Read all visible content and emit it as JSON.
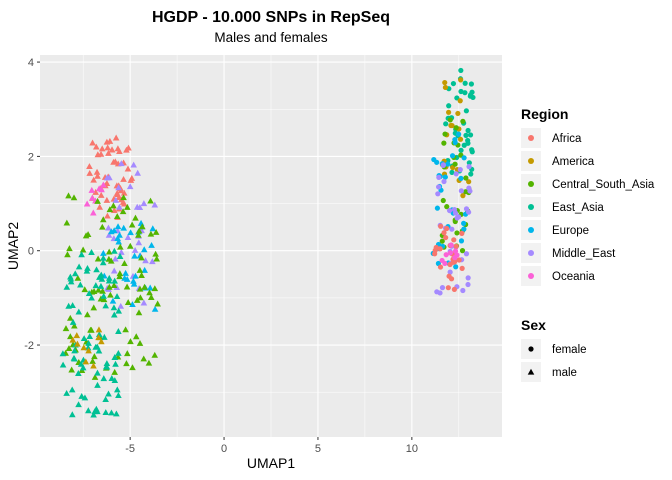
{
  "chart_data": {
    "type": "scatter",
    "title": "HGDP - 10.000 SNPs in RepSeq",
    "subtitle": "Males and females",
    "xlabel": "UMAP1",
    "ylabel": "UMAP2",
    "xlim": [
      -9.8,
      14.8
    ],
    "ylim": [
      -3.95,
      4.15
    ],
    "x_ticks": [
      -5,
      0,
      5,
      10
    ],
    "x_tick_labels": [
      "-5",
      "0",
      "5",
      "10"
    ],
    "y_ticks": [
      -2,
      0,
      2,
      4
    ],
    "y_tick_labels": [
      "-2",
      "0",
      "2",
      "4"
    ],
    "grid": true,
    "legend_position": "right",
    "color_legend": {
      "title": "Region",
      "entries": [
        {
          "label": "Africa",
          "color": "#F8766D"
        },
        {
          "label": "America",
          "color": "#C49A00"
        },
        {
          "label": "Central_South_Asia",
          "color": "#53B400"
        },
        {
          "label": "East_Asia",
          "color": "#00C094"
        },
        {
          "label": "Europe",
          "color": "#00B6EB"
        },
        {
          "label": "Middle_East",
          "color": "#A58AFF"
        },
        {
          "label": "Oceania",
          "color": "#FB61D7"
        }
      ]
    },
    "shape_legend": {
      "title": "Sex",
      "entries": [
        {
          "label": "female",
          "shape": "circle"
        },
        {
          "label": "male",
          "shape": "triangle"
        }
      ]
    },
    "clusters": [
      {
        "shape": "triangle",
        "region": "Africa",
        "n": 55,
        "x": [
          -7.2,
          -4.9
        ],
        "y": [
          0.7,
          2.4
        ]
      },
      {
        "shape": "triangle",
        "region": "Oceania",
        "n": 8,
        "x": [
          -7.3,
          -6.2
        ],
        "y": [
          0.8,
          1.4
        ]
      },
      {
        "shape": "triangle",
        "region": "Middle_East",
        "n": 35,
        "x": [
          -6.5,
          -3.6
        ],
        "y": [
          -1.2,
          1.9
        ]
      },
      {
        "shape": "triangle",
        "region": "Europe",
        "n": 30,
        "x": [
          -6.5,
          -3.6
        ],
        "y": [
          -1.3,
          0.6
        ]
      },
      {
        "shape": "triangle",
        "region": "Central_South_Asia",
        "n": 95,
        "x": [
          -8.5,
          -3.5
        ],
        "y": [
          -2.7,
          1.2
        ]
      },
      {
        "shape": "triangle",
        "region": "East_Asia",
        "n": 85,
        "x": [
          -8.6,
          -5.5
        ],
        "y": [
          -3.5,
          0.0
        ]
      },
      {
        "shape": "triangle",
        "region": "America",
        "n": 10,
        "x": [
          -8.3,
          -6.5
        ],
        "y": [
          -2.5,
          -1.6
        ]
      },
      {
        "shape": "circle",
        "region": "East_Asia",
        "n": 40,
        "x": [
          11.8,
          13.3
        ],
        "y": [
          1.6,
          3.9
        ]
      },
      {
        "shape": "circle",
        "region": "America",
        "n": 20,
        "x": [
          11.7,
          13.2
        ],
        "y": [
          1.0,
          3.8
        ]
      },
      {
        "shape": "circle",
        "region": "Central_South_Asia",
        "n": 30,
        "x": [
          11.6,
          13.1
        ],
        "y": [
          0.0,
          3.1
        ]
      },
      {
        "shape": "circle",
        "region": "Europe",
        "n": 30,
        "x": [
          11.1,
          12.9
        ],
        "y": [
          -0.4,
          2.6
        ]
      },
      {
        "shape": "circle",
        "region": "Middle_East",
        "n": 38,
        "x": [
          11.3,
          13.1
        ],
        "y": [
          -1.0,
          1.9
        ]
      },
      {
        "shape": "circle",
        "region": "Africa",
        "n": 25,
        "x": [
          11.2,
          12.8
        ],
        "y": [
          -0.9,
          0.6
        ]
      },
      {
        "shape": "circle",
        "region": "Oceania",
        "n": 8,
        "x": [
          11.5,
          12.5
        ],
        "y": [
          -0.5,
          0.3
        ]
      }
    ]
  }
}
